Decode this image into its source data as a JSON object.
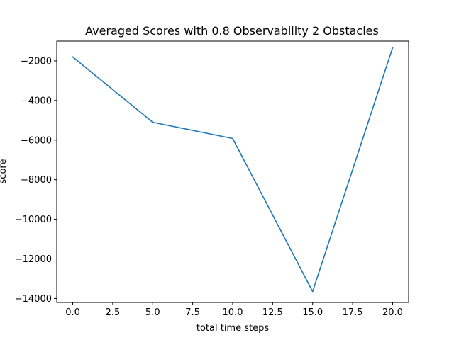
{
  "chart_data": {
    "type": "line",
    "title": "Averaged Scores with 0.8 Observability 2 Obstacles",
    "xlabel": "total time steps",
    "ylabel": "score",
    "xlim": [
      -1,
      21
    ],
    "ylim": [
      -14200,
      -1000
    ],
    "xticks": [
      "0.0",
      "2.5",
      "5.0",
      "7.5",
      "10.0",
      "12.5",
      "15.0",
      "17.5",
      "20.0"
    ],
    "yticks": [
      "−2000",
      "−4000",
      "−6000",
      "−8000",
      "−10000",
      "−12000",
      "−14000"
    ],
    "grid": false,
    "series": [
      {
        "color": "#1f77b4",
        "x": [
          0,
          5,
          10,
          15,
          20
        ],
        "y": [
          -1800,
          -5100,
          -5920,
          -13650,
          -1330
        ]
      }
    ]
  }
}
